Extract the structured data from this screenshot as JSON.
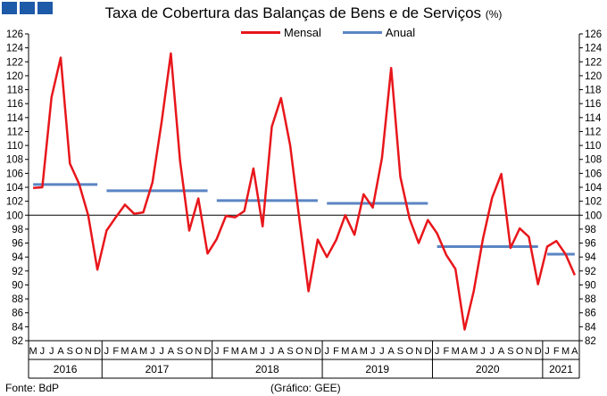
{
  "header": {
    "title": "Taxa de Cobertura das Balanças de Bens e de Serviços",
    "unit": "(%)"
  },
  "footer": {
    "source": "Fonte: BdP",
    "chart_credit": "(Gráfico: GEE)"
  },
  "colors": {
    "mensal": "#e8161b",
    "anual": "#5b85c3",
    "logo": "#1d5aa8",
    "axis": "#000000"
  },
  "chart_data": {
    "type": "line",
    "title": "Taxa de Cobertura das Balanças de Bens e de Serviços",
    "unit": "(%)",
    "ylim": [
      82,
      126
    ],
    "y_ticks": [
      82,
      84,
      86,
      88,
      90,
      92,
      94,
      96,
      98,
      100,
      102,
      104,
      106,
      108,
      110,
      112,
      114,
      116,
      118,
      120,
      122,
      124,
      126
    ],
    "reference_line": 100,
    "legend_position": "top-center",
    "grid": false,
    "x_month_labels": [
      "M",
      "J",
      "J",
      "A",
      "S",
      "O",
      "N",
      "D",
      "J",
      "F",
      "M",
      "A",
      "M",
      "J",
      "J",
      "A",
      "S",
      "O",
      "N",
      "D",
      "J",
      "F",
      "M",
      "A",
      "M",
      "J",
      "J",
      "A",
      "S",
      "O",
      "N",
      "D",
      "J",
      "F",
      "M",
      "A",
      "M",
      "J",
      "J",
      "A",
      "S",
      "O",
      "N",
      "D",
      "J",
      "F",
      "M",
      "A",
      "M",
      "J",
      "J",
      "A",
      "S",
      "O",
      "N",
      "D",
      "J",
      "F",
      "M",
      "A"
    ],
    "years": [
      {
        "label": "2016",
        "start": 0,
        "end": 7
      },
      {
        "label": "2017",
        "start": 8,
        "end": 19
      },
      {
        "label": "2018",
        "start": 20,
        "end": 31
      },
      {
        "label": "2019",
        "start": 32,
        "end": 43
      },
      {
        "label": "2020",
        "start": 44,
        "end": 55
      },
      {
        "label": "2021",
        "start": 56,
        "end": 59
      }
    ],
    "series": [
      {
        "name": "Mensal",
        "values": [
          103.9,
          104.0,
          116.9,
          122.6,
          107.4,
          104.5,
          100.0,
          92.2,
          97.8,
          99.7,
          101.5,
          100.2,
          100.4,
          104.7,
          113.4,
          123.2,
          107.8,
          97.8,
          102.4,
          94.5,
          96.6,
          99.9,
          99.7,
          100.6,
          106.7,
          98.4,
          112.7,
          116.8,
          110.0,
          99.4,
          89.1,
          96.5,
          94.0,
          96.4,
          100.0,
          97.2,
          103.0,
          101.1,
          108.2,
          121.1,
          105.5,
          99.5,
          96.0,
          99.3,
          97.4,
          94.3,
          92.3,
          83.6,
          89.1,
          96.6,
          102.5,
          105.9,
          95.3,
          98.1,
          96.9,
          90.1,
          95.5,
          96.3,
          94.4,
          91.4
        ]
      },
      {
        "name": "Anual",
        "segments": [
          {
            "year": "2016",
            "value": 104.4
          },
          {
            "year": "2017",
            "value": 103.5
          },
          {
            "year": "2018",
            "value": 102.1
          },
          {
            "year": "2019",
            "value": 101.7
          },
          {
            "year": "2020",
            "value": 95.5
          },
          {
            "year": "2021",
            "value": 94.4
          }
        ]
      }
    ]
  }
}
